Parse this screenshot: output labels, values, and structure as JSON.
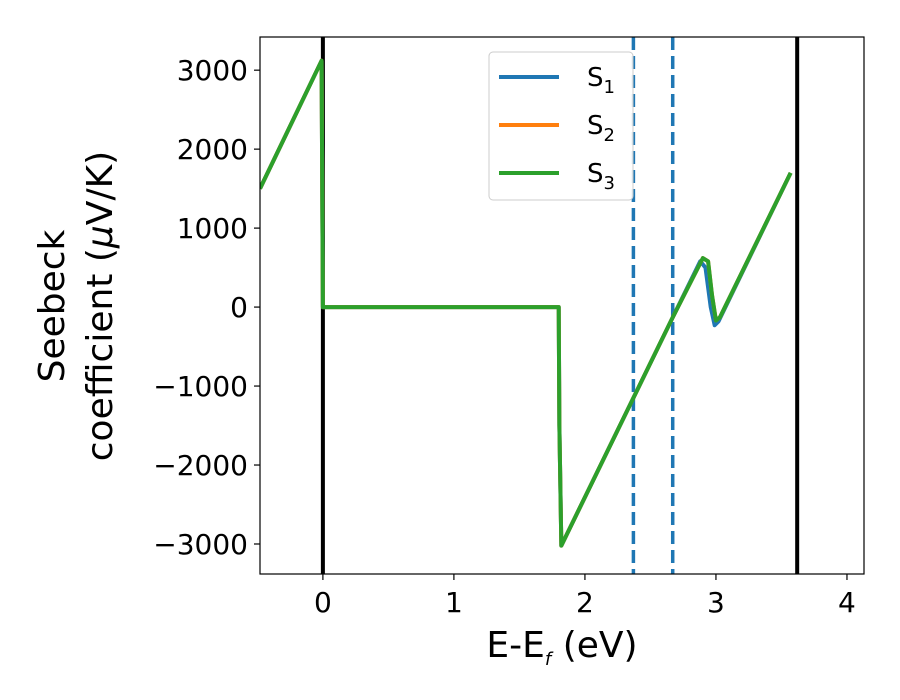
{
  "chart_data": {
    "type": "line",
    "title": "",
    "xlabel": "E-E",
    "xlabel_sub": "f",
    "xlabel_unit": " (eV)",
    "ylabel_line1": "Seebeck",
    "ylabel_line2": "coefficient  (",
    "ylabel_mu": "μ",
    "ylabel_unit": "V/K)",
    "xlim": [
      -0.48,
      4.13
    ],
    "ylim": [
      -3380,
      3420
    ],
    "xticks": [
      0,
      1,
      2,
      3,
      4
    ],
    "xtick_labels": [
      "0",
      "1",
      "2",
      "3",
      "4"
    ],
    "yticks": [
      3000,
      2000,
      1000,
      0,
      -1000,
      -2000,
      -3000
    ],
    "ytick_labels": [
      "3000",
      "2000",
      "1000",
      "0",
      "−1000",
      "−2000",
      "−3000"
    ],
    "grid": false,
    "legend_position": "upper-center",
    "vertical_lines": [
      {
        "x": 0.0,
        "style": "solid",
        "color": "#000000"
      },
      {
        "x": 3.62,
        "style": "solid",
        "color": "#000000"
      },
      {
        "x": 2.37,
        "style": "dashed",
        "color": "#1f77b4"
      },
      {
        "x": 2.67,
        "style": "dashed",
        "color": "#1f77b4"
      }
    ],
    "series": [
      {
        "name": "S",
        "sub": "1",
        "color": "#1f77b4",
        "x": [
          -0.48,
          -0.01,
          -0.005,
          0.0,
          1.8,
          1.805,
          1.82,
          2.37,
          2.67,
          2.88,
          2.92,
          2.96,
          2.99,
          3.02,
          3.57
        ],
        "y": [
          1500,
          3120,
          1500,
          0,
          0,
          -1500,
          -3020,
          -1150,
          -130,
          580,
          500,
          0,
          -230,
          -180,
          1700
        ]
      },
      {
        "name": "S",
        "sub": "2",
        "color": "#ff7f0e",
        "x": [
          -0.48,
          -0.01,
          -0.005,
          0.0,
          1.8,
          1.805,
          1.82,
          2.37,
          2.67,
          2.9,
          2.94,
          2.97,
          3.0,
          3.03,
          3.57
        ],
        "y": [
          1500,
          3120,
          1500,
          0,
          0,
          -1500,
          -3020,
          -1150,
          -130,
          620,
          580,
          150,
          -170,
          -130,
          1700
        ]
      },
      {
        "name": "S",
        "sub": "3",
        "color": "#2ca02c",
        "x": [
          -0.48,
          -0.01,
          -0.005,
          0.0,
          1.8,
          1.805,
          1.82,
          2.37,
          2.67,
          2.9,
          2.94,
          2.97,
          3.0,
          3.03,
          3.57
        ],
        "y": [
          1500,
          3120,
          1500,
          0,
          0,
          -1500,
          -3020,
          -1150,
          -130,
          620,
          580,
          150,
          -170,
          -130,
          1700
        ]
      }
    ]
  }
}
